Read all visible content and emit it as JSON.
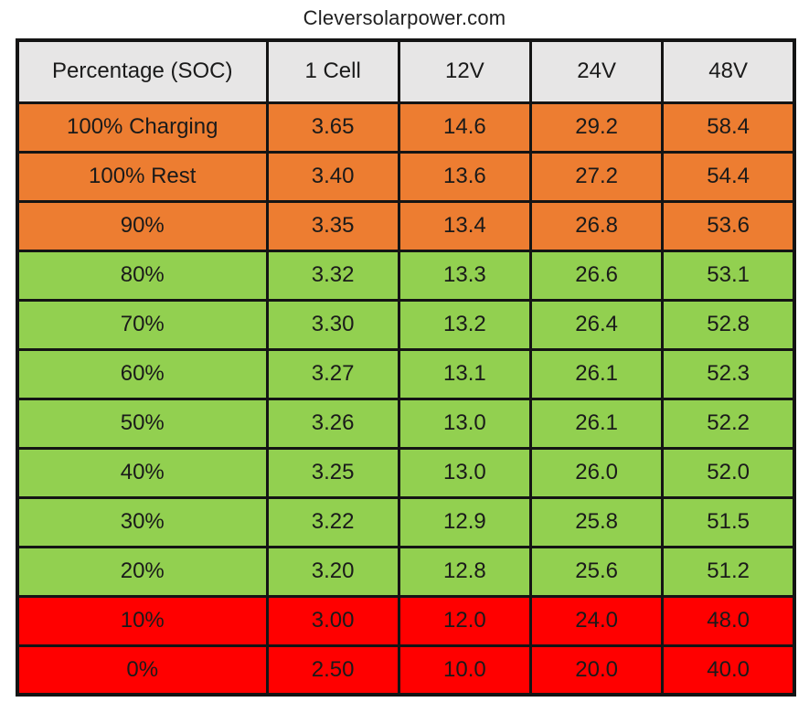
{
  "site_label": "Cleversolarpower.com",
  "colors": {
    "orange": "#ED7D31",
    "green": "#92D050",
    "red": "#FF0000",
    "header_bg": "#E7E6E6",
    "border": "#141414",
    "text": "#1a1a1a"
  },
  "chart_data": {
    "type": "table",
    "title": "Cleversolarpower.com",
    "columns": [
      "Percentage (SOC)",
      "1 Cell",
      "12V",
      "24V",
      "48V"
    ],
    "rows": [
      {
        "cells": [
          "100% Charging",
          "3.65",
          "14.6",
          "29.2",
          "58.4"
        ],
        "color": "orange"
      },
      {
        "cells": [
          "100% Rest",
          "3.40",
          "13.6",
          "27.2",
          "54.4"
        ],
        "color": "orange"
      },
      {
        "cells": [
          "90%",
          "3.35",
          "13.4",
          "26.8",
          "53.6"
        ],
        "color": "orange"
      },
      {
        "cells": [
          "80%",
          "3.32",
          "13.3",
          "26.6",
          "53.1"
        ],
        "color": "green"
      },
      {
        "cells": [
          "70%",
          "3.30",
          "13.2",
          "26.4",
          "52.8"
        ],
        "color": "green"
      },
      {
        "cells": [
          "60%",
          "3.27",
          "13.1",
          "26.1",
          "52.3"
        ],
        "color": "green"
      },
      {
        "cells": [
          "50%",
          "3.26",
          "13.0",
          "26.1",
          "52.2"
        ],
        "color": "green"
      },
      {
        "cells": [
          "40%",
          "3.25",
          "13.0",
          "26.0",
          "52.0"
        ],
        "color": "green"
      },
      {
        "cells": [
          "30%",
          "3.22",
          "12.9",
          "25.8",
          "51.5"
        ],
        "color": "green"
      },
      {
        "cells": [
          "20%",
          "3.20",
          "12.8",
          "25.6",
          "51.2"
        ],
        "color": "green"
      },
      {
        "cells": [
          "10%",
          "3.00",
          "12.0",
          "24.0",
          "48.0"
        ],
        "color": "red"
      },
      {
        "cells": [
          "0%",
          "2.50",
          "10.0",
          "20.0",
          "40.0"
        ],
        "color": "red"
      }
    ]
  }
}
